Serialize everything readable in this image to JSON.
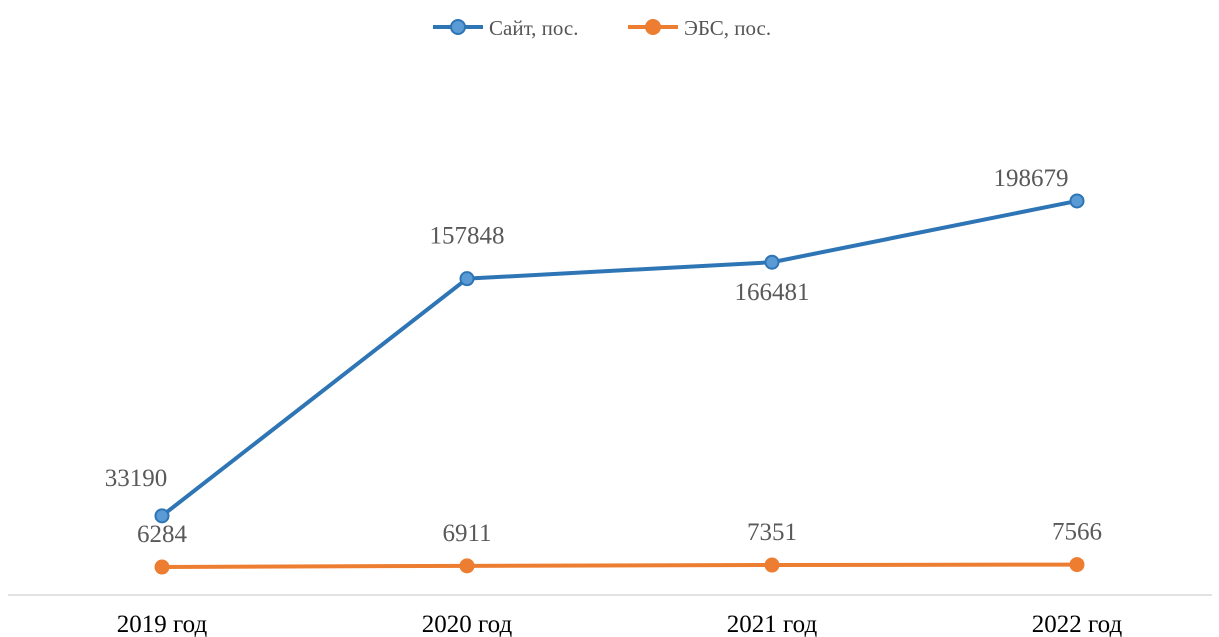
{
  "chart_data": {
    "type": "line",
    "categories": [
      "2019 год",
      "2020 год",
      "2021 год",
      "2022 год"
    ],
    "series": [
      {
        "name": "Сайт, пос.",
        "color": "#2E75B6",
        "marker_color": "#5B9BD5",
        "values": [
          33190,
          157848,
          166481,
          198679
        ]
      },
      {
        "name": "ЭБС, пос.",
        "color": "#ED7D31",
        "marker_color": "#ED7D31",
        "values": [
          6284,
          6911,
          7351,
          7566
        ]
      }
    ],
    "ylim": [
      0,
      220000
    ],
    "legend": "top-center",
    "grid": false,
    "axis_color": "#D9D9D9"
  }
}
